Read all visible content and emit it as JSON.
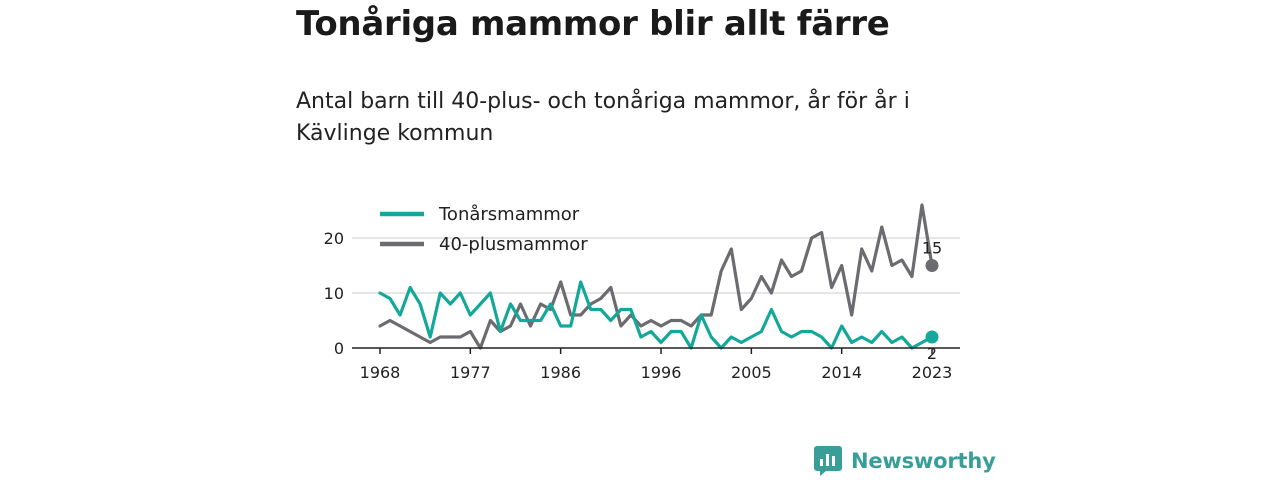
{
  "title": "Tonåriga mammor blir allt färre",
  "subtitle": "Antal barn till 40-plus- och tonåriga mammor, år för år i Kävlinge kommun",
  "brand": "Newsworthy",
  "colors": {
    "teal": "#14a89a",
    "gray": "#6b6b70",
    "grid": "#dddddd",
    "brand": "#3a9e98"
  },
  "chart_data": {
    "type": "line",
    "x": [
      1968,
      1969,
      1970,
      1971,
      1972,
      1973,
      1974,
      1975,
      1976,
      1977,
      1978,
      1979,
      1980,
      1981,
      1982,
      1983,
      1984,
      1985,
      1986,
      1987,
      1988,
      1989,
      1990,
      1991,
      1992,
      1993,
      1994,
      1995,
      1996,
      1997,
      1998,
      1999,
      2000,
      2001,
      2002,
      2003,
      2004,
      2005,
      2006,
      2007,
      2008,
      2009,
      2010,
      2011,
      2012,
      2013,
      2014,
      2015,
      2016,
      2017,
      2018,
      2019,
      2020,
      2021,
      2022,
      2023
    ],
    "series": [
      {
        "name": "Tonårsmammor",
        "color": "#14a89a",
        "values": [
          10,
          9,
          6,
          11,
          8,
          2,
          10,
          8,
          10,
          6,
          8,
          10,
          3,
          8,
          5,
          5,
          5,
          8,
          4,
          4,
          12,
          7,
          7,
          5,
          7,
          7,
          2,
          3,
          1,
          3,
          3,
          0,
          6,
          2,
          0,
          2,
          1,
          2,
          3,
          7,
          3,
          2,
          3,
          3,
          2,
          0,
          4,
          1,
          2,
          1,
          3,
          1,
          2,
          0,
          1,
          2
        ]
      },
      {
        "name": "40-plusmammor",
        "color": "#6b6b70",
        "values": [
          4,
          5,
          4,
          3,
          2,
          1,
          2,
          2,
          2,
          3,
          0,
          5,
          3,
          4,
          8,
          4,
          8,
          7,
          12,
          6,
          6,
          8,
          9,
          11,
          4,
          6,
          4,
          5,
          4,
          5,
          5,
          4,
          6,
          6,
          14,
          18,
          7,
          9,
          13,
          10,
          16,
          13,
          14,
          20,
          21,
          11,
          15,
          6,
          18,
          14,
          22,
          15,
          16,
          13,
          26,
          15
        ]
      }
    ],
    "xticks": [
      1968,
      1977,
      1986,
      1996,
      2005,
      2014,
      2023
    ],
    "yticks": [
      0,
      10,
      20
    ],
    "xlim": [
      1968,
      2023
    ],
    "ylim": [
      0,
      26
    ],
    "legend": "top-left",
    "grid": "horizontal",
    "end_labels": [
      {
        "series": "40-plusmammor",
        "value": "15"
      },
      {
        "series": "Tonårsmammor",
        "value": "2"
      }
    ]
  }
}
